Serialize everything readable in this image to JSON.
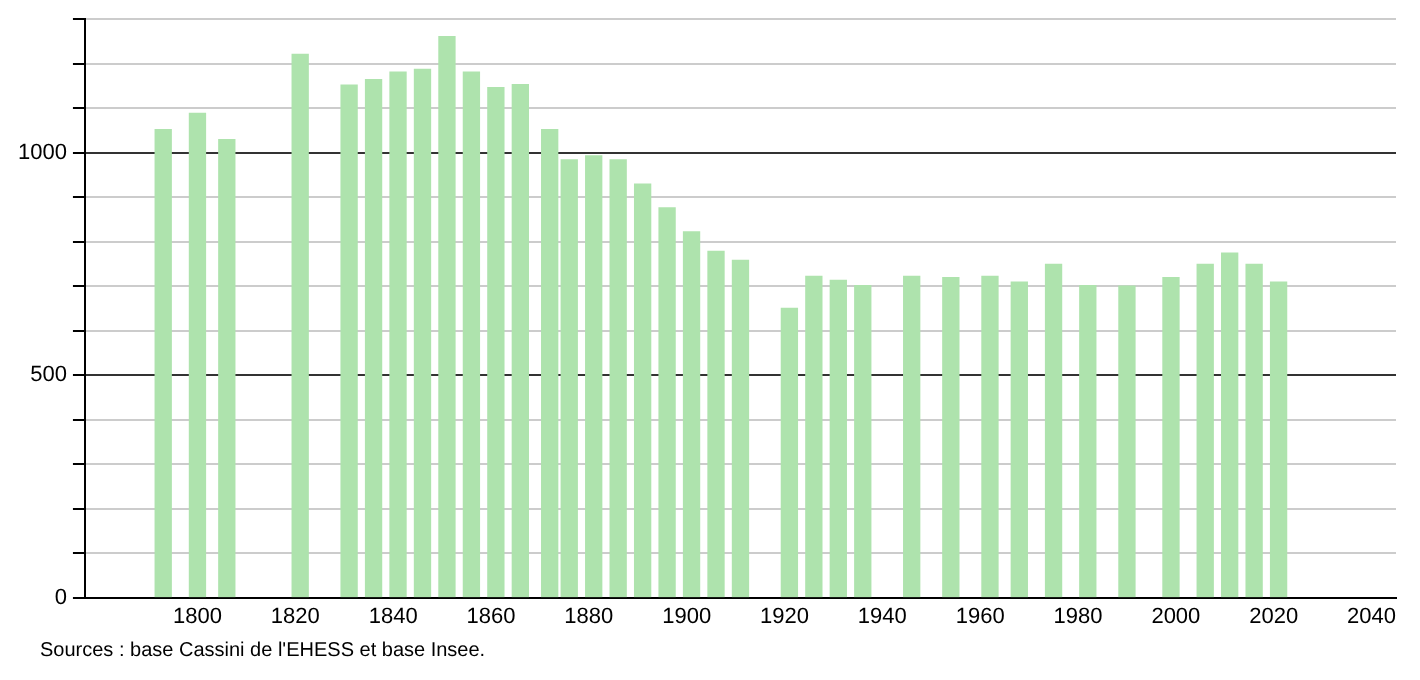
{
  "chart_data": {
    "type": "bar",
    "x": [
      1793,
      1800,
      1806,
      1821,
      1831,
      1836,
      1841,
      1846,
      1851,
      1856,
      1861,
      1866,
      1872,
      1876,
      1881,
      1886,
      1891,
      1896,
      1901,
      1906,
      1911,
      1921,
      1926,
      1931,
      1936,
      1946,
      1954,
      1962,
      1968,
      1975,
      1982,
      1990,
      1999,
      2006,
      2011,
      2016,
      2021
    ],
    "values": [
      1052,
      1088,
      1029,
      1221,
      1152,
      1164,
      1181,
      1187,
      1261,
      1181,
      1146,
      1153,
      1052,
      984,
      993,
      984,
      929,
      876,
      822,
      778,
      758,
      650,
      722,
      713,
      701,
      722,
      719,
      722,
      709,
      749,
      701,
      700,
      719,
      749,
      774,
      749,
      709
    ],
    "color": "#aee3ad",
    "xlim": [
      1777,
      2045
    ],
    "xticks": [
      1800,
      1820,
      1840,
      1860,
      1880,
      1900,
      1920,
      1940,
      1960,
      1980,
      2000,
      2020,
      2040
    ],
    "ylim": [
      0,
      1300
    ],
    "yticks": [
      0,
      {
        "value": 100,
        "label": null
      },
      {
        "value": 200,
        "label": null
      },
      {
        "value": 300,
        "label": null
      },
      {
        "value": 400,
        "label": null
      },
      500,
      {
        "value": 600,
        "label": null
      },
      {
        "value": 700,
        "label": null
      },
      {
        "value": 800,
        "label": null
      },
      {
        "value": 900,
        "label": null
      },
      1000,
      {
        "value": 1100,
        "label": null
      },
      {
        "value": 1200,
        "label": null
      },
      {
        "value": 1300,
        "label": null
      }
    ],
    "grid": "y",
    "legend": false,
    "annotations": [
      "Sources : base Cassini de l'EHESS et base Insee."
    ]
  }
}
